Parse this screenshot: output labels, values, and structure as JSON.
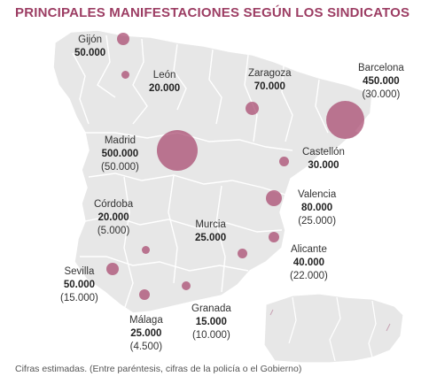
{
  "title": "PRINCIPALES MANIFESTACIONES SEGÚN LOS SINDICATOS",
  "footnote": "Cifras estimadas. (Entre paréntesis, cifras de la policía o el Gobierno)",
  "colors": {
    "title": "#9c3d63",
    "bubble": "#a8466e",
    "land": "#e7e7e7",
    "borders": "#ffffff"
  },
  "cities": [
    {
      "id": "gijon",
      "name": "Gijón",
      "unions": "50.000",
      "police": "",
      "unions_n": 50000
    },
    {
      "id": "leon",
      "name": "León",
      "unions": "20.000",
      "police": "",
      "unions_n": 20000
    },
    {
      "id": "zaragoza",
      "name": "Zaragoza",
      "unions": "70.000",
      "police": "",
      "unions_n": 70000
    },
    {
      "id": "barcelona",
      "name": "Barcelona",
      "unions": "450.000",
      "police": "(30.000)",
      "unions_n": 450000
    },
    {
      "id": "madrid",
      "name": "Madrid",
      "unions": "500.000",
      "police": "(50.000)",
      "unions_n": 500000
    },
    {
      "id": "castellon",
      "name": "Castellón",
      "unions": "30.000",
      "police": "",
      "unions_n": 30000
    },
    {
      "id": "cordoba",
      "name": "Córdoba",
      "unions": "20.000",
      "police": "(5.000)",
      "unions_n": 20000
    },
    {
      "id": "valencia",
      "name": "Valencia",
      "unions": "80.000",
      "police": "(25.000)",
      "unions_n": 80000
    },
    {
      "id": "murcia",
      "name": "Murcia",
      "unions": "25.000",
      "police": "",
      "unions_n": 25000
    },
    {
      "id": "alicante",
      "name": "Alicante",
      "unions": "40.000",
      "police": "(22.000)",
      "unions_n": 40000
    },
    {
      "id": "sevilla",
      "name": "Sevilla",
      "unions": "50.000",
      "police": "(15.000)",
      "unions_n": 50000
    },
    {
      "id": "malaga",
      "name": "Málaga",
      "unions": "25.000",
      "police": "(4.500)",
      "unions_n": 25000
    },
    {
      "id": "granada",
      "name": "Granada",
      "unions": "15.000",
      "police": "(10.000)",
      "unions_n": 15000
    },
    {
      "id": "jaen",
      "name": "",
      "unions": "",
      "police": "",
      "unions_n": 8000
    },
    {
      "id": "almeria",
      "name": "",
      "unions": "",
      "police": "",
      "unions_n": 8000
    }
  ]
}
